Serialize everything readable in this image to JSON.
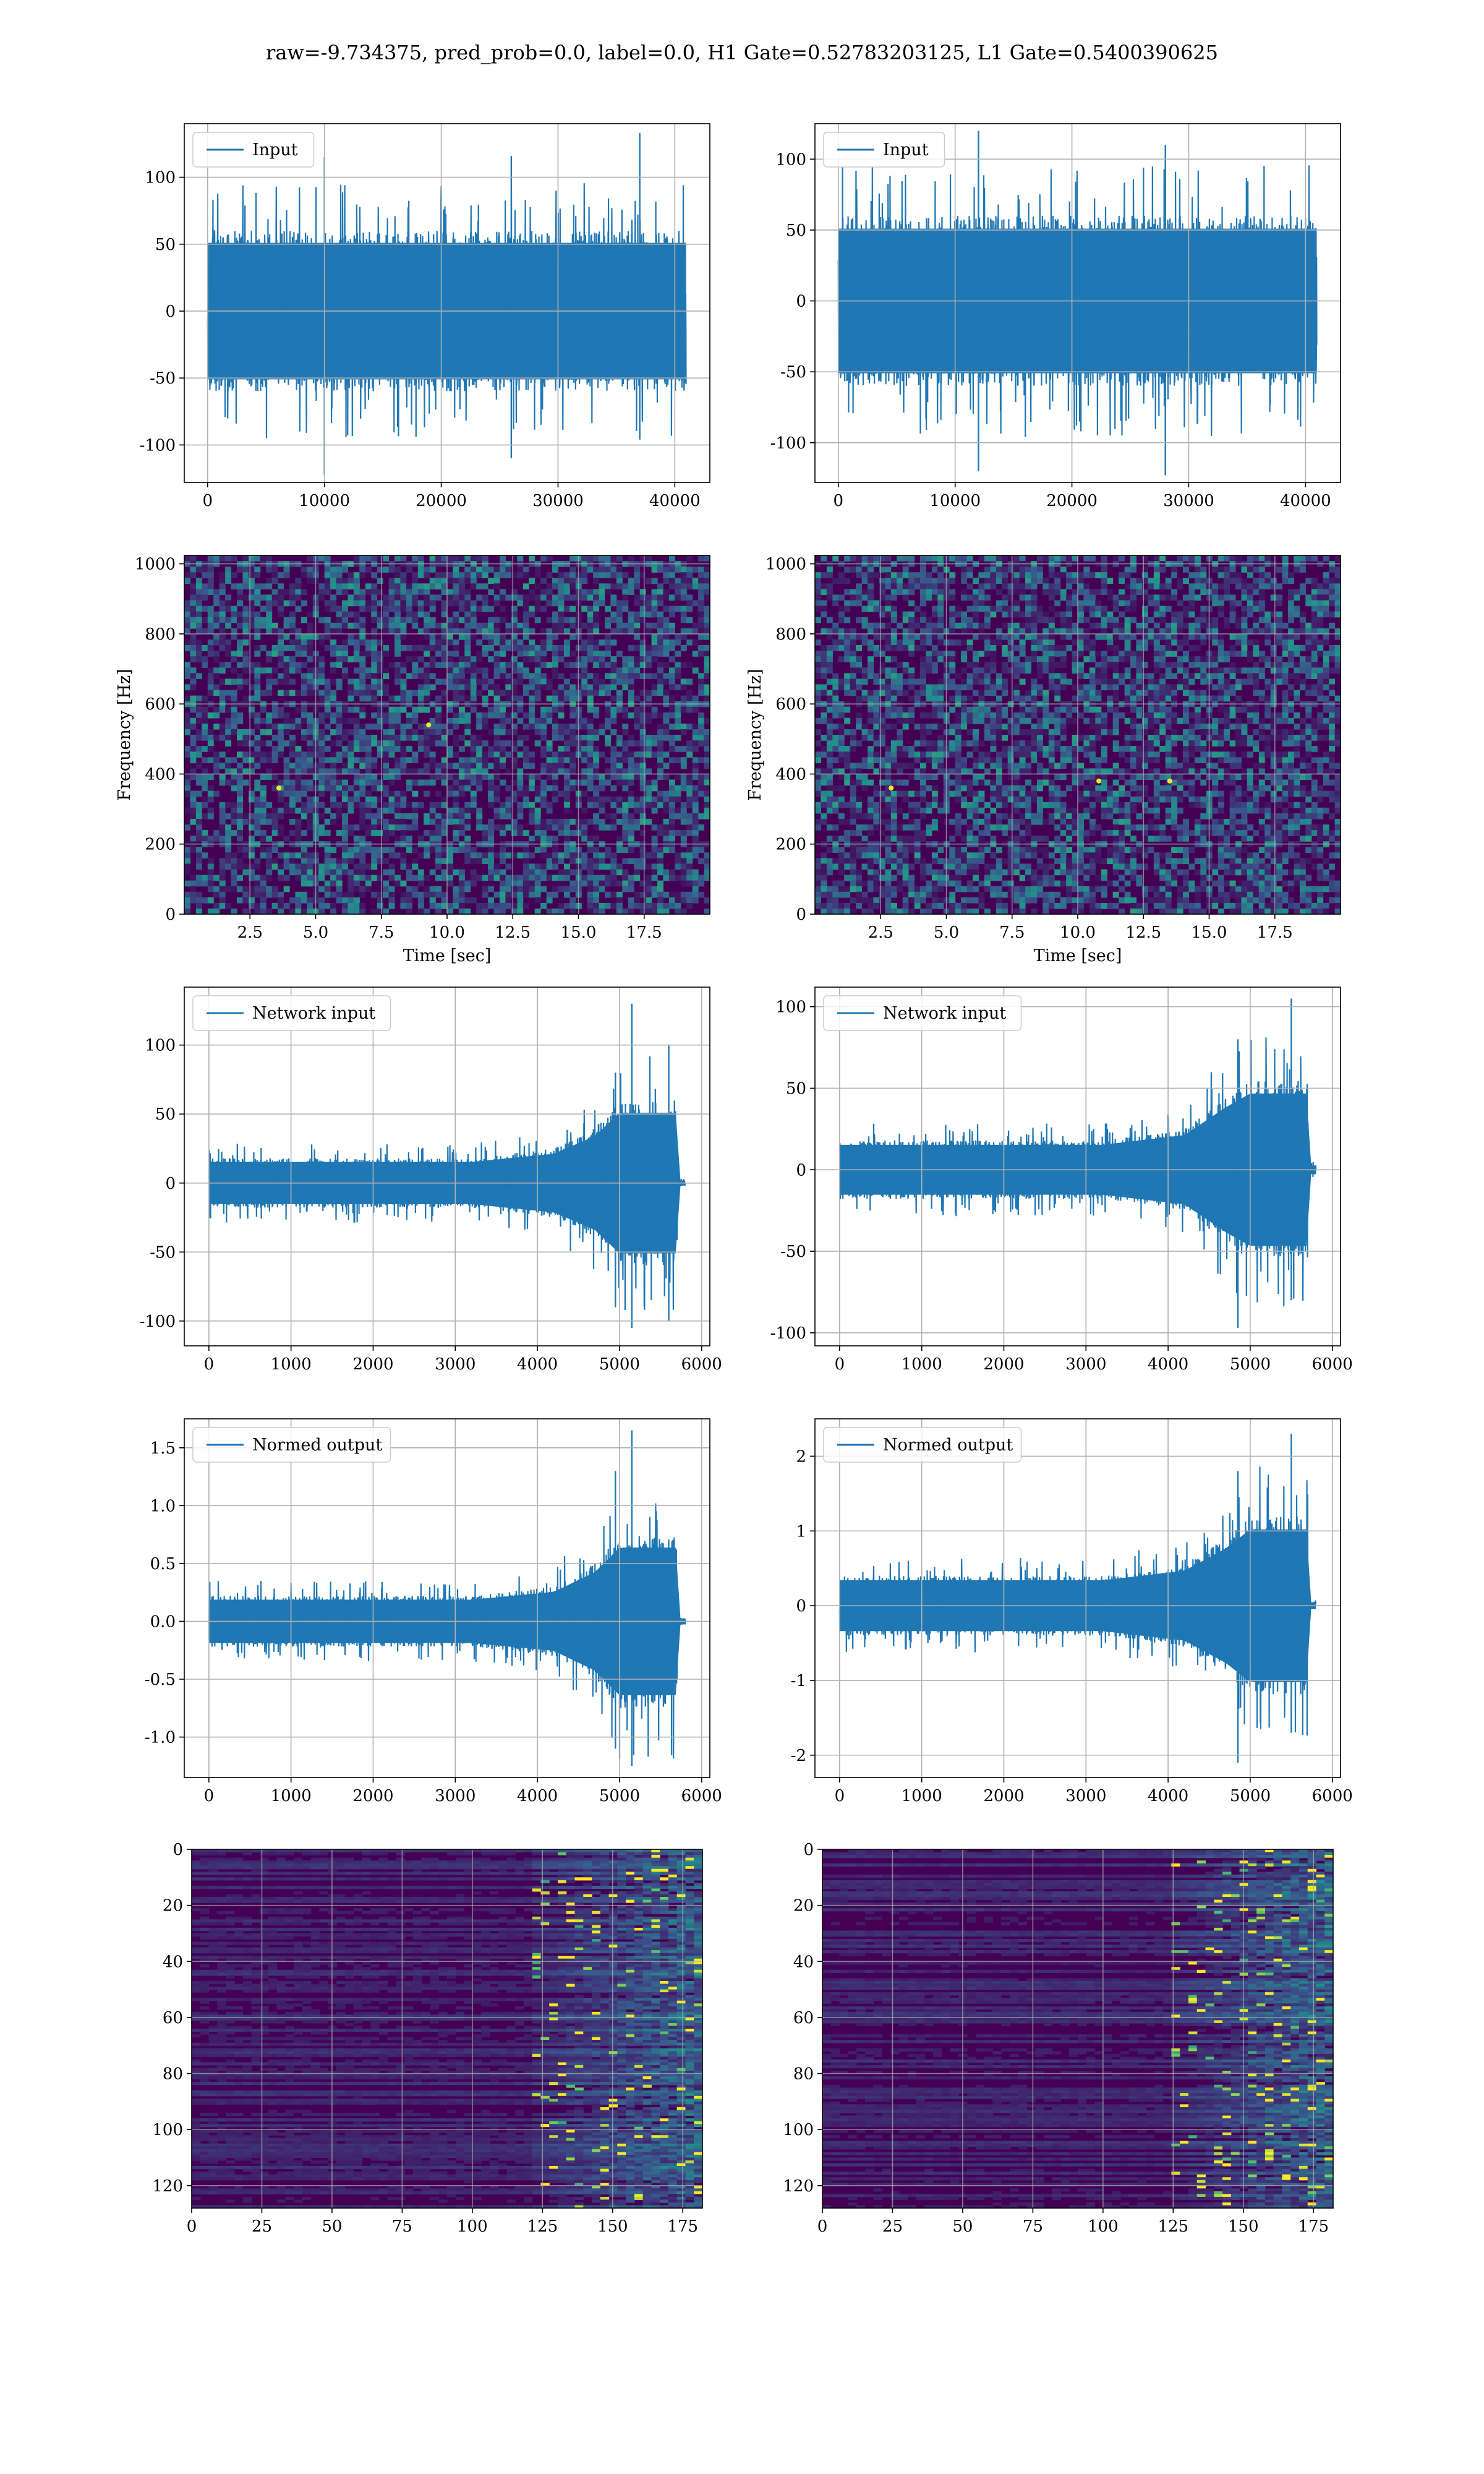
{
  "figure": {
    "title": "raw=-9.734375, pred_prob=0.0, label=0.0, H1 Gate=0.52783203125, L1 Gate=0.5400390625"
  },
  "colors": {
    "line": "#1f77b4",
    "grid": "#b0b0b0",
    "viridis_low": "#440154",
    "viridis_mid": "#21918c",
    "viridis_high": "#fde725"
  },
  "chart_data": [
    {
      "id": "input-left",
      "type": "line",
      "legend": "Input",
      "legend_position": "top-left",
      "xlim": [
        -2000,
        43000
      ],
      "ylim": [
        -128,
        140
      ],
      "xticks": [
        0,
        10000,
        20000,
        30000,
        40000
      ],
      "yticks": [
        -100,
        -50,
        0,
        50,
        100
      ],
      "series": [
        {
          "name": "Input",
          "x_range": [
            0,
            40960
          ],
          "envelope": [
            {
              "x": 0,
              "lo": -60,
              "hi": 60
            },
            {
              "x": 40960,
              "lo": -60,
              "hi": 60
            }
          ],
          "peaks": [
            {
              "x": 10000,
              "lo": -122,
              "hi": 115
            },
            {
              "x": 26000,
              "lo": -110,
              "hi": 116
            },
            {
              "x": 37000,
              "lo": -96,
              "hi": 133
            }
          ]
        }
      ]
    },
    {
      "id": "input-right",
      "type": "line",
      "legend": "Input",
      "legend_position": "top-left",
      "xlim": [
        -2000,
        43000
      ],
      "ylim": [
        -128,
        125
      ],
      "xticks": [
        0,
        10000,
        20000,
        30000,
        40000
      ],
      "yticks": [
        -100,
        -50,
        0,
        50,
        100
      ],
      "series": [
        {
          "name": "Input",
          "x_range": [
            0,
            40960
          ],
          "envelope": [
            {
              "x": 0,
              "lo": -60,
              "hi": 60
            },
            {
              "x": 40960,
              "lo": -60,
              "hi": 60
            }
          ],
          "peaks": [
            {
              "x": 12000,
              "lo": -120,
              "hi": 120
            },
            {
              "x": 28000,
              "lo": -123,
              "hi": 110
            }
          ]
        }
      ]
    },
    {
      "id": "spectrogram-left",
      "type": "heatmap",
      "xlabel": "Time [sec]",
      "ylabel": "Frequency [Hz]",
      "xlim": [
        0,
        20
      ],
      "ylim": [
        0,
        1024
      ],
      "xticks": [
        "2.5",
        "5.0",
        "7.5",
        "10.0",
        "12.5",
        "15.0",
        "17.5"
      ],
      "yticks": [
        0,
        200,
        400,
        600,
        800,
        1000
      ],
      "colormap": "viridis",
      "highlights": [
        {
          "t": 9.3,
          "f": 540
        },
        {
          "t": 3.6,
          "f": 360
        }
      ]
    },
    {
      "id": "spectrogram-right",
      "type": "heatmap",
      "xlabel": "Time [sec]",
      "ylabel": "Frequency [Hz]",
      "xlim": [
        0,
        20
      ],
      "ylim": [
        0,
        1024
      ],
      "xticks": [
        "2.5",
        "5.0",
        "7.5",
        "10.0",
        "12.5",
        "15.0",
        "17.5"
      ],
      "yticks": [
        0,
        200,
        400,
        600,
        800,
        1000
      ],
      "colormap": "viridis",
      "highlights": [
        {
          "t": 10.8,
          "f": 380
        },
        {
          "t": 13.5,
          "f": 380
        },
        {
          "t": 2.9,
          "f": 360
        }
      ]
    },
    {
      "id": "network-input-left",
      "type": "line",
      "legend": "Network input",
      "legend_position": "top-left",
      "xlim": [
        -300,
        6100
      ],
      "ylim": [
        -118,
        142
      ],
      "xticks": [
        0,
        1000,
        2000,
        3000,
        4000,
        5000,
        6000
      ],
      "yticks": [
        -100,
        -50,
        0,
        50,
        100
      ],
      "series": [
        {
          "name": "Network input",
          "x_range": [
            0,
            5800
          ],
          "envelope": [
            {
              "x": 0,
              "lo": -18,
              "hi": 18
            },
            {
              "x": 3200,
              "lo": -18,
              "hi": 18
            },
            {
              "x": 4200,
              "lo": -25,
              "hi": 25
            },
            {
              "x": 4700,
              "lo": -40,
              "hi": 40
            },
            {
              "x": 5000,
              "lo": -60,
              "hi": 60
            },
            {
              "x": 5700,
              "lo": -60,
              "hi": 60
            },
            {
              "x": 5710,
              "lo": -2,
              "hi": 2
            },
            {
              "x": 5800,
              "lo": -2,
              "hi": 2
            }
          ],
          "peaks": [
            {
              "x": 5150,
              "lo": -105,
              "hi": 130
            },
            {
              "x": 4950,
              "lo": -90,
              "hi": 80
            },
            {
              "x": 5600,
              "lo": -100,
              "hi": 100
            }
          ]
        }
      ]
    },
    {
      "id": "network-input-right",
      "type": "line",
      "legend": "Network input",
      "legend_position": "top-left",
      "xlim": [
        -300,
        6100
      ],
      "ylim": [
        -108,
        112
      ],
      "xticks": [
        0,
        1000,
        2000,
        3000,
        4000,
        5000,
        6000
      ],
      "yticks": [
        -100,
        -50,
        0,
        50,
        100
      ],
      "series": [
        {
          "name": "Network input",
          "x_range": [
            0,
            5800
          ],
          "envelope": [
            {
              "x": 0,
              "lo": -18,
              "hi": 18
            },
            {
              "x": 3200,
              "lo": -18,
              "hi": 18
            },
            {
              "x": 4200,
              "lo": -25,
              "hi": 25
            },
            {
              "x": 4700,
              "lo": -45,
              "hi": 45
            },
            {
              "x": 5000,
              "lo": -55,
              "hi": 55
            },
            {
              "x": 5700,
              "lo": -55,
              "hi": 55
            },
            {
              "x": 5710,
              "lo": -3,
              "hi": 3
            },
            {
              "x": 5800,
              "lo": -3,
              "hi": 3
            }
          ],
          "peaks": [
            {
              "x": 4850,
              "lo": -97,
              "hi": 80
            },
            {
              "x": 5500,
              "lo": -80,
              "hi": 105
            }
          ]
        }
      ]
    },
    {
      "id": "normed-output-left",
      "type": "line",
      "legend": "Normed output",
      "legend_position": "top-left",
      "xlim": [
        -300,
        6100
      ],
      "ylim": [
        -1.35,
        1.75
      ],
      "xticks": [
        0,
        1000,
        2000,
        3000,
        4000,
        5000,
        6000
      ],
      "yticks": [
        "-1.0",
        "-0.5",
        "0.0",
        "0.5",
        "1.0",
        "1.5"
      ],
      "series": [
        {
          "name": "Normed output",
          "x_range": [
            0,
            5800
          ],
          "envelope": [
            {
              "x": 0,
              "lo": -0.22,
              "hi": 0.22
            },
            {
              "x": 3200,
              "lo": -0.22,
              "hi": 0.22
            },
            {
              "x": 4200,
              "lo": -0.3,
              "hi": 0.3
            },
            {
              "x": 4700,
              "lo": -0.5,
              "hi": 0.5
            },
            {
              "x": 5000,
              "lo": -0.75,
              "hi": 0.75
            },
            {
              "x": 5700,
              "lo": -0.75,
              "hi": 0.75
            },
            {
              "x": 5710,
              "lo": -0.03,
              "hi": 0.03
            },
            {
              "x": 5800,
              "lo": -0.03,
              "hi": 0.03
            }
          ],
          "peaks": [
            {
              "x": 5150,
              "lo": -1.25,
              "hi": 1.65
            },
            {
              "x": 4950,
              "lo": -1.1,
              "hi": 1.3
            }
          ]
        }
      ]
    },
    {
      "id": "normed-output-right",
      "type": "line",
      "legend": "Normed output",
      "legend_position": "top-left",
      "xlim": [
        -300,
        6100
      ],
      "ylim": [
        -2.3,
        2.5
      ],
      "xticks": [
        0,
        1000,
        2000,
        3000,
        4000,
        5000,
        6000
      ],
      "yticks": [
        -2,
        -1,
        0,
        1,
        2
      ],
      "series": [
        {
          "name": "Normed output",
          "x_range": [
            0,
            5800
          ],
          "envelope": [
            {
              "x": 0,
              "lo": -0.4,
              "hi": 0.4
            },
            {
              "x": 3200,
              "lo": -0.4,
              "hi": 0.4
            },
            {
              "x": 4200,
              "lo": -0.55,
              "hi": 0.55
            },
            {
              "x": 4700,
              "lo": -0.9,
              "hi": 0.9
            },
            {
              "x": 5000,
              "lo": -1.2,
              "hi": 1.2
            },
            {
              "x": 5700,
              "lo": -1.2,
              "hi": 1.2
            },
            {
              "x": 5710,
              "lo": -0.05,
              "hi": 0.05
            },
            {
              "x": 5800,
              "lo": -0.05,
              "hi": 0.05
            }
          ],
          "peaks": [
            {
              "x": 4850,
              "lo": -2.1,
              "hi": 1.8
            },
            {
              "x": 5500,
              "lo": -1.7,
              "hi": 2.3
            }
          ]
        }
      ]
    },
    {
      "id": "feature-map-left",
      "type": "heatmap",
      "colormap": "viridis",
      "xlim": [
        0,
        182
      ],
      "ylim": [
        128,
        0
      ],
      "xticks": [
        0,
        25,
        50,
        75,
        100,
        125,
        150,
        175
      ],
      "yticks": [
        0,
        20,
        40,
        60,
        80,
        100,
        120
      ],
      "active_from_column": 120
    },
    {
      "id": "feature-map-right",
      "type": "heatmap",
      "colormap": "viridis",
      "xlim": [
        0,
        182
      ],
      "ylim": [
        128,
        0
      ],
      "xticks": [
        0,
        25,
        50,
        75,
        100,
        125,
        150,
        175
      ],
      "yticks": [
        0,
        20,
        40,
        60,
        80,
        100,
        120
      ],
      "active_from_column": 125
    }
  ]
}
